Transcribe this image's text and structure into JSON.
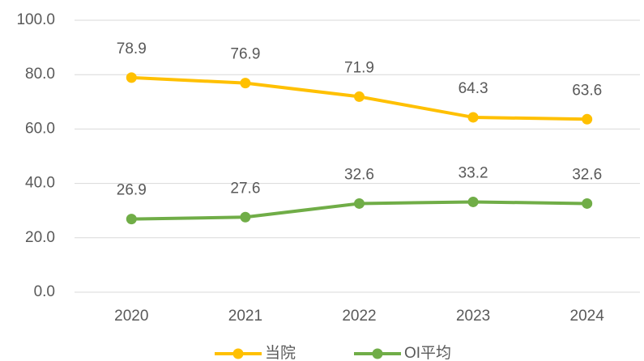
{
  "chart_data": {
    "type": "line",
    "categories": [
      "2020",
      "2021",
      "2022",
      "2023",
      "2024"
    ],
    "series": [
      {
        "name": "当院",
        "color": "#FFC000",
        "values": [
          78.9,
          76.9,
          71.9,
          64.3,
          63.6
        ]
      },
      {
        "name": "OI平均",
        "color": "#70AD47",
        "values": [
          26.9,
          27.6,
          32.6,
          33.2,
          32.6
        ]
      }
    ],
    "ylim": [
      0,
      100
    ],
    "yticks": [
      {
        "value": 0,
        "label": "0.0"
      },
      {
        "value": 20,
        "label": "20.0"
      },
      {
        "value": 40,
        "label": "40.0"
      },
      {
        "value": 60,
        "label": "60.0"
      },
      {
        "value": 80,
        "label": "80.0"
      },
      {
        "value": 100,
        "label": "100.0"
      }
    ],
    "grid": true,
    "legend": "bottom"
  }
}
